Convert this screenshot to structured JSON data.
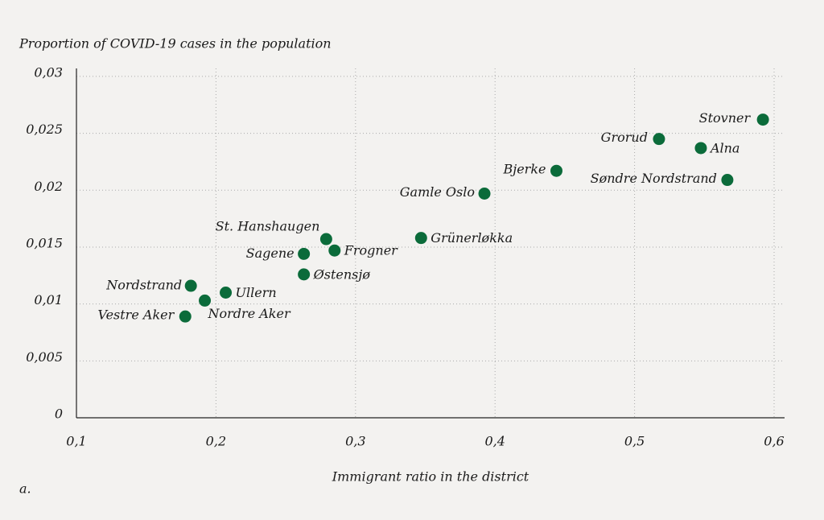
{
  "chart_data": {
    "type": "scatter",
    "title": "Proportion of COVID-19 cases in the population",
    "x_label": "Immigrant ratio in the district",
    "caption": "a.",
    "color": "#0b6b3a",
    "grid": true,
    "labels": [
      "Stovner",
      "Grorud",
      "Alna",
      "Bjerke",
      "Søndre Nordstrand",
      "Gamle Oslo",
      "Grünerløkka",
      "St. Hanshaugen",
      "Frogner",
      "Sagene",
      "Østensjø",
      "Nordstrand",
      "Ullern",
      "Nordre Aker",
      "Vestre Aker"
    ],
    "x": [
      0.592,
      0.5175,
      0.5475,
      0.444,
      0.5665,
      0.3924,
      0.347,
      0.279,
      0.285,
      0.263,
      0.263,
      0.182,
      0.207,
      0.192,
      0.178
    ],
    "values": [
      0.0262,
      0.0245,
      0.0237,
      0.0217,
      0.0209,
      0.0197,
      0.0158,
      0.0157,
      0.0147,
      0.0144,
      0.0126,
      0.0116,
      0.011,
      0.0103,
      0.0089
    ],
    "xlim": [
      0.1,
      0.6075
    ],
    "ylim": [
      0,
      0.0307
    ],
    "xticks": [
      {
        "value": 0.1,
        "label": "0,1"
      },
      {
        "value": 0.2,
        "label": "0,2"
      },
      {
        "value": 0.3,
        "label": "0,3"
      },
      {
        "value": 0.4,
        "label": "0,4"
      },
      {
        "value": 0.5,
        "label": "0,5"
      },
      {
        "value": 0.6,
        "label": "0,6"
      }
    ],
    "yticks": [
      0,
      {
        "value": 0.005,
        "label": "0,005"
      },
      {
        "value": 0.01,
        "label": "0,01"
      },
      {
        "value": 0.015,
        "label": "0,015"
      },
      {
        "value": 0.02,
        "label": "0,02"
      },
      {
        "value": 0.025,
        "label": "0,025"
      },
      {
        "value": 0.03,
        "label": "0,03"
      }
    ]
  }
}
